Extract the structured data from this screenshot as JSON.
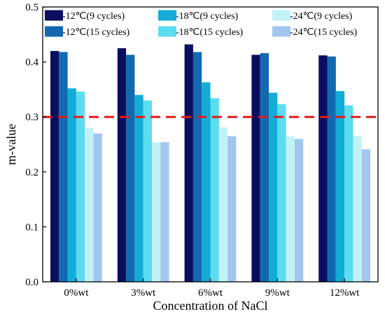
{
  "chart_data": {
    "type": "bar",
    "xlabel": "Concentration of NaCl",
    "ylabel": "m-value",
    "ylim": [
      0,
      0.5
    ],
    "yticks": [
      0.0,
      0.1,
      0.2,
      0.3,
      0.4,
      0.5
    ],
    "ytick_labels": [
      "0.0",
      "0.1",
      "0.2",
      "0.3",
      "0.4",
      "0.5"
    ],
    "categories": [
      "0%wt",
      "3%wt",
      "6%wt",
      "9%wt",
      "12%wt"
    ],
    "legend_position": "top",
    "threshold": {
      "value": 0.3,
      "color": "#e31a1c",
      "style": "dashed"
    },
    "series": [
      {
        "name": "-12℃(9 cycles)",
        "color": "#0b0e5e",
        "values": [
          0.42,
          0.425,
          0.432,
          0.413,
          0.412
        ]
      },
      {
        "name": "-12℃(15 cycles)",
        "color": "#1269b0",
        "values": [
          0.418,
          0.413,
          0.418,
          0.416,
          0.41
        ]
      },
      {
        "name": "-18℃(9 cycles)",
        "color": "#12acd6",
        "values": [
          0.352,
          0.34,
          0.363,
          0.344,
          0.347
        ]
      },
      {
        "name": "-18℃(15 cycles)",
        "color": "#5bdcef",
        "values": [
          0.346,
          0.33,
          0.334,
          0.323,
          0.321
        ]
      },
      {
        "name": "-24℃(9 cycles)",
        "color": "#c3f1f8",
        "values": [
          0.28,
          0.254,
          0.281,
          0.265,
          0.265
        ]
      },
      {
        "name": "-24℃(15 cycles)",
        "color": "#a2c7ef",
        "values": [
          0.27,
          0.254,
          0.265,
          0.26,
          0.241
        ]
      }
    ]
  }
}
